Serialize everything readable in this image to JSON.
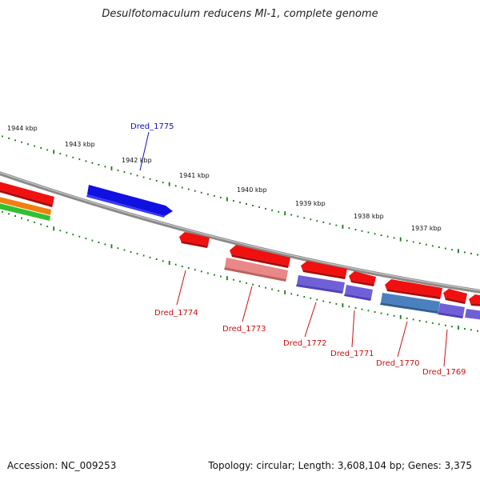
{
  "title": "Desulfotomaculum reducens MI-1, complete genome",
  "accession": "Accession: NC_009253",
  "topology": "Topology: circular; Length: 3,608,104 bp; Genes: 3,375",
  "colors": {
    "backbone": "#8a8a8a",
    "tick": "#1a7a1a",
    "strand_forward_gene": "#1010e0",
    "reverse_gene": "#f01010",
    "reverse_gene_light": "#e88888",
    "purple_feature": "#7060d8",
    "steel_feature": "#4a80c0",
    "orange_feature": "#f08010",
    "green_feature": "#30c030",
    "label_forward": "#1010c0",
    "label_reverse": "#cc1010"
  },
  "scale_labels": [
    "1944 kbp",
    "1943 kbp",
    "1942 kbp",
    "1941 kbp",
    "1940 kbp",
    "1939 kbp",
    "1938 kbp",
    "1937 kbp"
  ],
  "genes": [
    {
      "name": "Dred_1775",
      "strand": "forward"
    },
    {
      "name": "Dred_1774",
      "strand": "reverse"
    },
    {
      "name": "Dred_1773",
      "strand": "reverse"
    },
    {
      "name": "Dred_1772",
      "strand": "reverse"
    },
    {
      "name": "Dred_1771",
      "strand": "reverse"
    },
    {
      "name": "Dred_1770",
      "strand": "reverse"
    },
    {
      "name": "Dred_1769",
      "strand": "reverse"
    }
  ]
}
